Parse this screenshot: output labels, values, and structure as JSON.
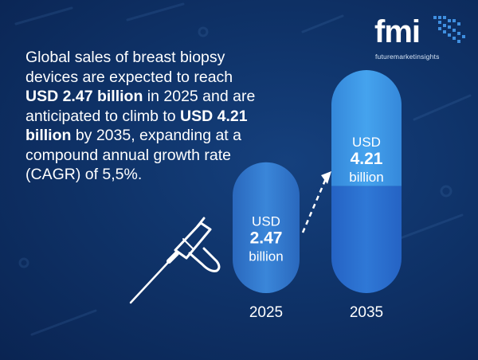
{
  "headline": {
    "p1": "Global sales of breast biopsy devices are expected to reach ",
    "v1": "USD 2.47 billion",
    "p2": " in 2025 and are anticipated to climb to ",
    "v2": "USD 4.21 billion",
    "p3": " by 2035, expanding at a compound annual growth rate (CAGR) of 5,5%."
  },
  "logo": {
    "brand": "fmi",
    "tagline": "futuremarketinsights"
  },
  "colors": {
    "background": "#0f3369",
    "bar_2025": "#2f74c9",
    "bar_2035_top": "#3a93e3",
    "bar_2035_bottom": "#2a6fd0",
    "arrow": "#ffffff"
  },
  "chart_data": {
    "type": "bar",
    "categories": [
      "2025",
      "2035"
    ],
    "values": [
      2.47,
      4.21
    ],
    "unit": "billion",
    "currency": "USD",
    "value_labels": [
      [
        "USD",
        "2.47",
        "billion"
      ],
      [
        "USD",
        "4.21",
        "billion"
      ]
    ],
    "title": "",
    "xlabel": "",
    "ylabel": "",
    "ylim": [
      0,
      4.5
    ],
    "grid": false
  }
}
